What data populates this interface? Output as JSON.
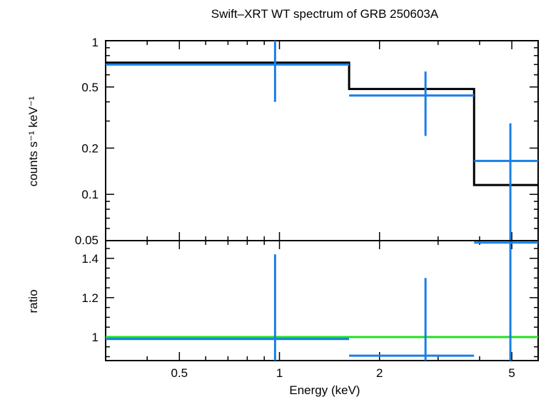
{
  "chart_data": {
    "type": "scatter",
    "title": "Swift–XRT WT spectrum of GRB 250603A",
    "xlabel": "Energy (keV)",
    "x_scale": "log",
    "xlim": [
      0.3,
      6.0
    ],
    "x_ticks": [
      {
        "value": 0.5,
        "label": "0.5"
      },
      {
        "value": 1,
        "label": "1"
      },
      {
        "value": 2,
        "label": "2"
      },
      {
        "value": 5,
        "label": "5"
      }
    ],
    "colors": {
      "data": "#1a7fe6",
      "model": "#000000",
      "unity": "#22e022",
      "axes": "#000000"
    },
    "panels": [
      {
        "id": "spectrum",
        "ylabel": "counts s⁻¹ keV⁻¹",
        "y_scale": "log",
        "ylim": [
          0.05,
          1.0
        ],
        "y_ticks": [
          {
            "value": 1,
            "label": "1"
          },
          {
            "value": 0.5,
            "label": "0.5"
          },
          {
            "value": 0.2,
            "label": "0.2"
          },
          {
            "value": 0.1,
            "label": "0.1"
          },
          {
            "value": 0.05,
            "label": "0.05"
          }
        ],
        "data": [
          {
            "xlo": 0.3,
            "xhi": 1.62,
            "x": 0.97,
            "y": 0.7,
            "ylo": 0.4,
            "yhi": 1.0
          },
          {
            "xlo": 1.62,
            "xhi": 3.85,
            "x": 2.75,
            "y": 0.44,
            "ylo": 0.24,
            "yhi": 0.63
          },
          {
            "xlo": 3.85,
            "xhi": 6.0,
            "x": 4.95,
            "y": 0.165,
            "ylo": 0.05,
            "yhi": 0.29
          }
        ],
        "model": [
          {
            "xlo": 0.3,
            "xhi": 1.62,
            "y": 0.72
          },
          {
            "xlo": 1.62,
            "xhi": 3.85,
            "y": 0.485
          },
          {
            "xlo": 3.85,
            "xhi": 6.0,
            "y": 0.115
          }
        ]
      },
      {
        "id": "ratio",
        "ylabel": "ratio",
        "y_scale": "linear",
        "ylim": [
          0.88,
          1.49
        ],
        "y_ticks": [
          {
            "value": 1.4,
            "label": "1.4"
          },
          {
            "value": 1.2,
            "label": "1.2"
          },
          {
            "value": 1,
            "label": "1"
          }
        ],
        "reference_line": 1.0,
        "data": [
          {
            "xlo": 0.3,
            "xhi": 1.62,
            "x": 0.97,
            "y": 0.99,
            "ylo": 0.88,
            "yhi": 1.42
          },
          {
            "xlo": 1.62,
            "xhi": 3.85,
            "x": 2.75,
            "y": 0.905,
            "ylo": 0.88,
            "yhi": 1.3
          },
          {
            "xlo": 3.85,
            "xhi": 6.0,
            "x": 4.95,
            "y": 1.48,
            "ylo": 0.88,
            "yhi": 1.49
          }
        ]
      }
    ]
  }
}
